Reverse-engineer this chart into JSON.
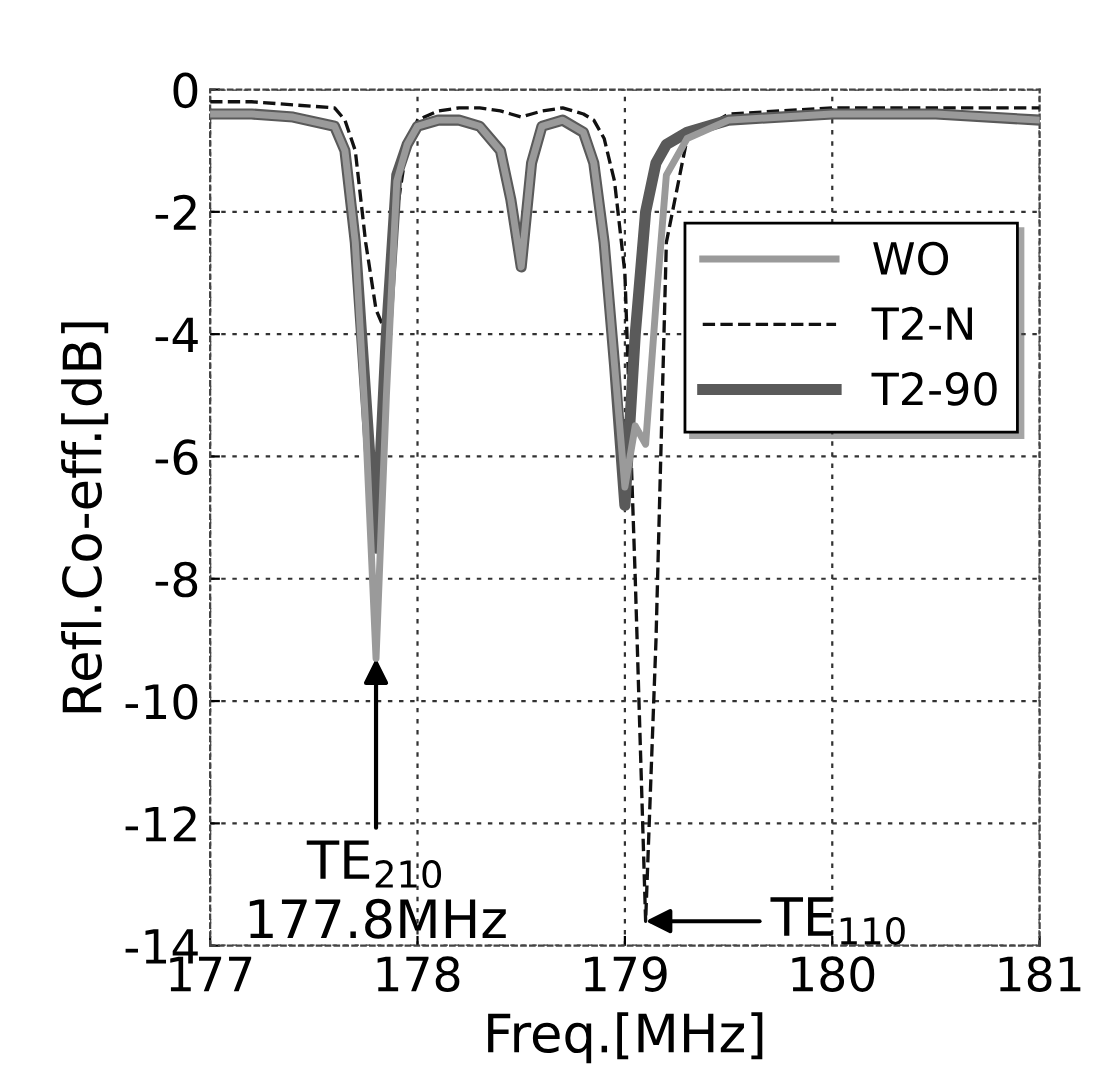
{
  "chart_data": {
    "type": "line",
    "xlabel": "Freq.[MHz]",
    "ylabel": "Refl.Co-eff.[dB]",
    "x": [
      177,
      177.2,
      177.4,
      177.6,
      177.65,
      177.7,
      177.75,
      177.8,
      177.85,
      177.9,
      177.95,
      178.0,
      178.1,
      178.2,
      178.3,
      178.4,
      178.45,
      178.5,
      178.55,
      178.6,
      178.7,
      178.8,
      178.85,
      178.9,
      178.95,
      179.0,
      179.05,
      179.1,
      179.15,
      179.2,
      179.3,
      179.5,
      180,
      180.5,
      181
    ],
    "series": [
      {
        "name": "WO",
        "color": "#9a9a9a",
        "line_style": "solid",
        "values": [
          -0.4,
          -0.4,
          -0.45,
          -0.6,
          -1.0,
          -2.5,
          -5.5,
          -9.3,
          -5.0,
          -1.5,
          -0.9,
          -0.6,
          -0.5,
          -0.5,
          -0.6,
          -1.0,
          -1.8,
          -2.9,
          -1.2,
          -0.6,
          -0.5,
          -0.7,
          -1.2,
          -2.5,
          -4.5,
          -6.5,
          -5.5,
          -5.8,
          -3.5,
          -1.4,
          -0.8,
          -0.5,
          -0.4,
          -0.4,
          -0.5
        ]
      },
      {
        "name": "T2-N",
        "color": "#111111",
        "line_style": "dashed",
        "values": [
          -0.2,
          -0.2,
          -0.25,
          -0.3,
          -0.5,
          -1.0,
          -2.5,
          -3.6,
          -4.0,
          -2.0,
          -0.9,
          -0.5,
          -0.35,
          -0.3,
          -0.3,
          -0.35,
          -0.4,
          -0.45,
          -0.4,
          -0.35,
          -0.3,
          -0.4,
          -0.5,
          -0.8,
          -1.5,
          -3.0,
          -8.0,
          -13.6,
          -9.0,
          -2.5,
          -0.8,
          -0.4,
          -0.3,
          -0.3,
          -0.3
        ]
      },
      {
        "name": "T2-90",
        "color": "#5a5a5a",
        "line_style": "solid",
        "values": [
          -0.4,
          -0.4,
          -0.45,
          -0.6,
          -1.0,
          -2.5,
          -5.0,
          -7.5,
          -4.0,
          -1.4,
          -0.9,
          -0.6,
          -0.5,
          -0.5,
          -0.6,
          -1.0,
          -1.8,
          -2.9,
          -1.2,
          -0.6,
          -0.5,
          -0.7,
          -1.2,
          -2.5,
          -4.5,
          -6.8,
          -4.0,
          -2.0,
          -1.2,
          -0.9,
          -0.7,
          -0.5,
          -0.4,
          -0.4,
          -0.5
        ]
      }
    ],
    "xlim": [
      177,
      181
    ],
    "xticks": [
      177,
      178,
      179,
      180,
      181
    ],
    "ylim": [
      -14,
      0
    ],
    "yticks": [
      -14,
      -12,
      -10,
      -8,
      -6,
      -4,
      -2,
      0
    ],
    "grid": true,
    "legend": "top right",
    "marker": "none",
    "annotations": [
      {
        "text": "TE$_{210}$\n177.8MHz",
        "x": 177.8,
        "y": -9.3
      },
      {
        "text": "TE$_{110}$",
        "x": 179.1,
        "y": -13.6
      }
    ]
  }
}
